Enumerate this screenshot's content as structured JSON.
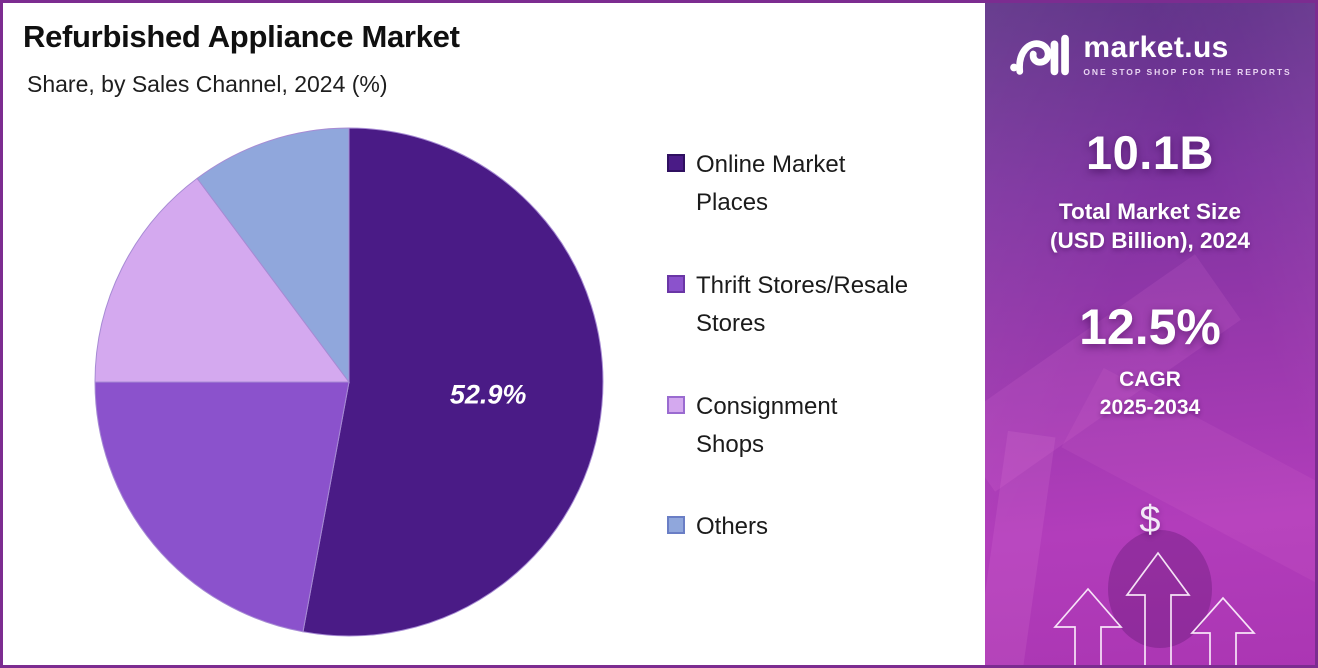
{
  "page": {
    "border_color": "#7C2C90",
    "background_color": "#FFFFFF"
  },
  "header": {
    "title": "Refurbished Appliance Market",
    "subtitle": "Share, by Sales Channel, 2024 (%)"
  },
  "chart_data": {
    "type": "pie",
    "title": "Refurbished Appliance Market — Share, by Sales Channel, 2024 (%)",
    "labels": [
      "Online Market Places",
      "Thrift Stores/Resale Stores",
      "Consignment Shops",
      "Others"
    ],
    "legend_lines": [
      [
        "Online Market",
        "Places"
      ],
      [
        "Thrift Stores/Resale",
        "Stores"
      ],
      [
        "Consignment",
        "Shops"
      ],
      [
        "Others"
      ]
    ],
    "values": [
      52.9,
      22.1,
      14.8,
      10.2
    ],
    "value_labels": [
      "52.9%",
      "",
      "",
      ""
    ],
    "colors": [
      "#4A1B86",
      "#8B52CC",
      "#D4A9EF",
      "#90A7DC"
    ],
    "swatch_border_colors": [
      "#2F1060",
      "#6A36A6",
      "#9A6BD0",
      "#6A7EC5"
    ],
    "slice_stroke": "#A78BD4",
    "value_label_color": "#FFFFFF",
    "start_angle_deg": 0,
    "direction": "clockwise",
    "legend_position": "right",
    "note_visible_values": "only largest slice labeled on chart"
  },
  "sidebar": {
    "logo": {
      "brand": "market.us",
      "tagline": "ONE STOP SHOP FOR THE REPORTS"
    },
    "stats": [
      {
        "value": "10.1B",
        "label_lines": [
          "Total Market Size",
          "(USD Billion), 2024"
        ]
      },
      {
        "value": "12.5%",
        "label_lines": [
          "CAGR",
          "2025-2034"
        ]
      }
    ],
    "dollar_symbol": "$",
    "colors": {
      "gradient_top": "#5B2E85",
      "gradient_mid": "#9838AC",
      "gradient_bottom": "#B23DBB"
    }
  }
}
